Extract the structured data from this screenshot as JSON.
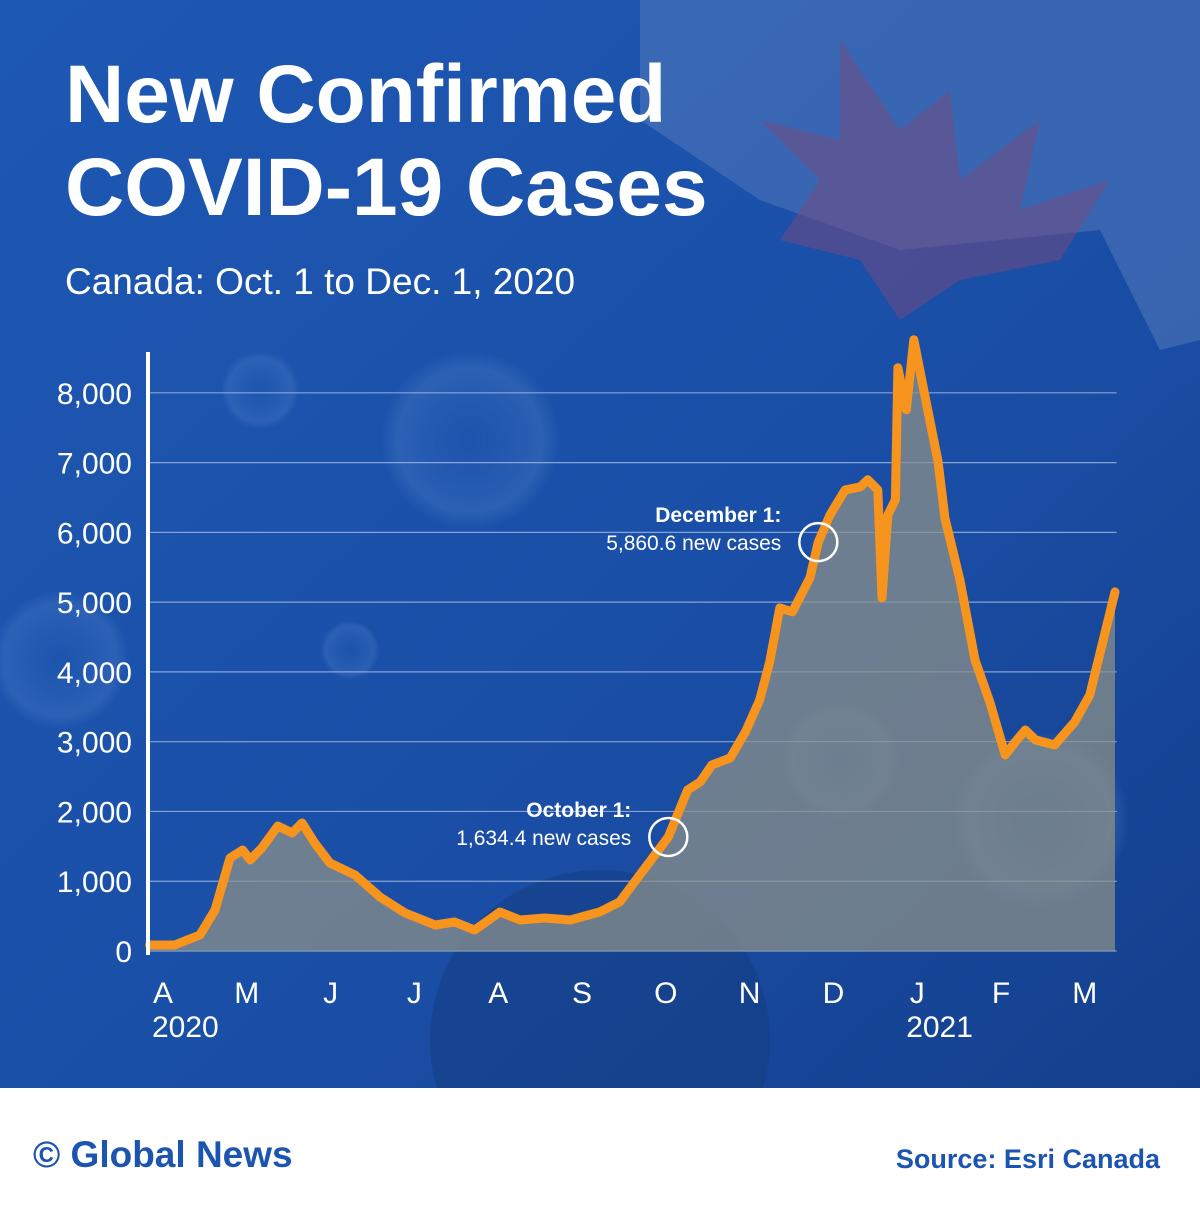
{
  "chart_data": {
    "type": "area-line",
    "title": [
      "New Confirmed",
      "COVID-19 Cases"
    ],
    "subtitle": "Canada: Oct. 1 to Dec. 1, 2020",
    "x": [
      -0.16,
      0.14,
      0.44,
      0.62,
      0.8,
      0.95,
      1.04,
      1.18,
      1.37,
      1.54,
      1.66,
      1.81,
      1.99,
      2.29,
      2.59,
      2.89,
      3.25,
      3.48,
      3.72,
      4.02,
      4.26,
      4.56,
      4.86,
      5.21,
      5.45,
      5.69,
      6.03,
      6.26,
      6.41,
      6.55,
      6.77,
      6.95,
      7.12,
      7.24,
      7.36,
      7.51,
      7.72,
      7.82,
      7.96,
      8.14,
      8.32,
      8.41,
      8.53,
      8.58,
      8.65,
      8.74,
      8.77,
      8.87,
      8.96,
      9.09,
      9.25,
      9.33,
      9.51,
      9.69,
      9.87,
      10.05,
      10.17,
      10.29,
      10.41,
      10.64,
      10.88,
      11.06,
      11.36
    ],
    "values": [
      86,
      86,
      229,
      588,
      1333,
      1448,
      1305,
      1477,
      1792,
      1692,
      1835,
      1548,
      1262,
      1090,
      774,
      545,
      373,
      416,
      301,
      559,
      444,
      473,
      444,
      559,
      703,
      1090,
      1634,
      2308,
      2423,
      2667,
      2767,
      3140,
      3599,
      4143,
      4918,
      4860,
      5348,
      5860,
      6251,
      6609,
      6652,
      6753,
      6609,
      5061,
      6251,
      6466,
      8358,
      7756,
      8760,
      7971,
      7011,
      6208,
      5319,
      4172,
      3556,
      2810,
      2996,
      3168,
      3025,
      2953,
      3283,
      3670,
      5147
    ],
    "color": "#f7941d",
    "area_color": "#8a8f8a",
    "xlim": [
      -0.18,
      11.38
    ],
    "xticks": [
      {
        "value": 0,
        "label": "A"
      },
      {
        "value": 1,
        "label": "M"
      },
      {
        "value": 2,
        "label": "J"
      },
      {
        "value": 3,
        "label": "J"
      },
      {
        "value": 4,
        "label": "A"
      },
      {
        "value": 5,
        "label": "S"
      },
      {
        "value": 6,
        "label": "O"
      },
      {
        "value": 7,
        "label": "N"
      },
      {
        "value": 8,
        "label": "D"
      },
      {
        "value": 9,
        "label": "J"
      },
      {
        "value": 10,
        "label": "F"
      },
      {
        "value": 11,
        "label": "M"
      }
    ],
    "year_labels": [
      {
        "value": 0,
        "label": "2020"
      },
      {
        "value": 9,
        "label": "2021"
      }
    ],
    "ylim": [
      0,
      8800
    ],
    "yticks": [
      0,
      {
        "value": 1000,
        "label": "1,000"
      },
      {
        "value": 2000,
        "label": "2,000"
      },
      {
        "value": 3000,
        "label": "3,000"
      },
      {
        "value": 4000,
        "label": "4,000"
      },
      {
        "value": 5000,
        "label": "5,000"
      },
      {
        "value": 6000,
        "label": "6,000"
      },
      {
        "value": 7000,
        "label": "7,000"
      },
      {
        "value": 8000,
        "label": "8,000"
      }
    ],
    "grid": true,
    "annotations": [
      {
        "heading": "October 1:",
        "text": "1,634.4 new cases",
        "x": 6.03,
        "y": 1634.4
      },
      {
        "heading": "December 1:",
        "text": "5,860.6 new cases",
        "x": 7.82,
        "y": 5860.6
      }
    ],
    "footer": {
      "brand": "© Global News",
      "source": "Source: Esri Canada"
    }
  }
}
